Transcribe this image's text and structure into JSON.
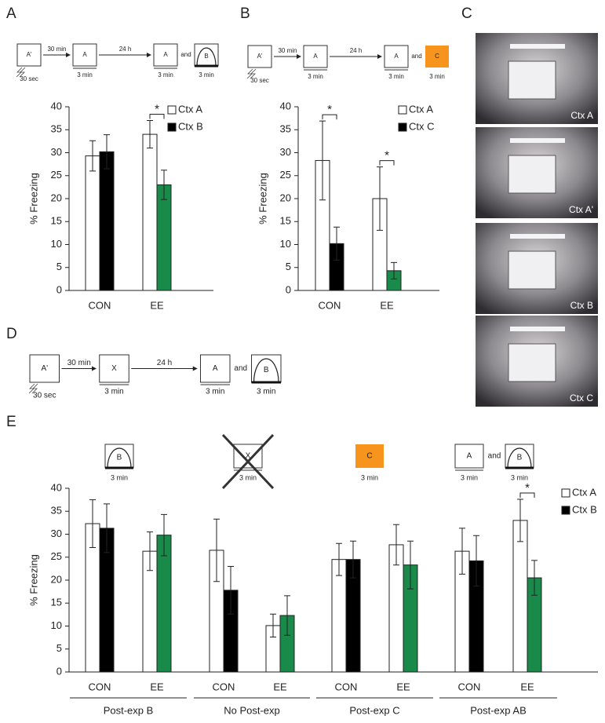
{
  "panel_labels": [
    "A",
    "B",
    "C",
    "D",
    "E"
  ],
  "diagrams": {
    "A": {
      "boxes": [
        "A'",
        "A",
        "A",
        "B"
      ],
      "shock": "30 sec",
      "arrows": [
        "30 min",
        "24 h"
      ],
      "joiner": "and",
      "durations": [
        "3 min",
        "3 min",
        "3 min"
      ]
    },
    "B": {
      "boxes": [
        "A'",
        "A",
        "A",
        "C"
      ],
      "shock": "30 sec",
      "arrows": [
        "30 min",
        "24 h"
      ],
      "joiner": "and",
      "durations": [
        "3 min",
        "3 min",
        "3 min"
      ]
    },
    "D": {
      "boxes": [
        "A'",
        "X",
        "A",
        "B"
      ],
      "shock": "30 sec",
      "arrows": [
        "30 min",
        "24 h"
      ],
      "joiner": "and",
      "durations": [
        "3 min",
        "3 min",
        "3 min"
      ]
    }
  },
  "conditions": [
    {
      "boxes": [
        "B"
      ],
      "durations": [
        "3 min"
      ]
    },
    {
      "boxes": [
        "X"
      ],
      "durations": [
        "3 min"
      ]
    },
    {
      "boxes": [
        "C"
      ],
      "durations": [
        "3 min"
      ]
    },
    {
      "boxes": [
        "A",
        "B"
      ],
      "joiner": "and",
      "durations": [
        "3 min",
        "3 min"
      ]
    }
  ],
  "photos": [
    "Ctx A",
    "Ctx A'",
    "Ctx B",
    "Ctx C"
  ],
  "chart_data": [
    {
      "type": "bar",
      "ylabel": "% Freezing",
      "categories": [
        "CON",
        "EE"
      ],
      "series": [
        {
          "name": "Ctx A",
          "color": "#ffffff",
          "values": [
            29.3,
            34
          ],
          "errors": [
            3.3,
            3
          ]
        },
        {
          "name": "Ctx B",
          "color": "#000000",
          "colors": [
            "#000000",
            "#1a8a4a"
          ],
          "values": [
            30.2,
            23
          ],
          "errors": [
            3.7,
            3.2
          ]
        }
      ],
      "significance": [
        null,
        "*"
      ],
      "ylim": [
        0,
        40
      ],
      "yticks": [
        0,
        5,
        10,
        15,
        20,
        25,
        30,
        35,
        40
      ]
    },
    {
      "type": "bar",
      "ylabel": "% Freezing",
      "categories": [
        "CON",
        "EE"
      ],
      "series": [
        {
          "name": "Ctx A",
          "color": "#ffffff",
          "values": [
            28.3,
            20
          ],
          "errors": [
            8.6,
            6.9
          ]
        },
        {
          "name": "Ctx C",
          "color": "#000000",
          "colors": [
            "#000000",
            "#1a8a4a"
          ],
          "values": [
            10.2,
            4.3
          ],
          "errors": [
            3.6,
            1.8
          ]
        }
      ],
      "significance": [
        "*",
        "*"
      ],
      "ylim": [
        0,
        40
      ],
      "yticks": [
        0,
        5,
        10,
        15,
        20,
        25,
        30,
        35,
        40
      ]
    },
    {
      "type": "bar",
      "ylabel": "% Freezing",
      "categories": [
        "CON",
        "EE",
        "CON",
        "EE",
        "CON",
        "EE",
        "CON",
        "EE"
      ],
      "groups": [
        "Post-exp B",
        "No Post-exp",
        "Post-exp C",
        "Post-exp AB"
      ],
      "series": [
        {
          "name": "Ctx A",
          "color": "#ffffff",
          "values": [
            32.3,
            26.3,
            26.5,
            10.1,
            24.5,
            27.7,
            26.3,
            33
          ],
          "errors": [
            5.2,
            4.2,
            6.8,
            2.5,
            3.5,
            4.4,
            5,
            4.6
          ]
        },
        {
          "name": "Ctx B",
          "color": "#000000",
          "colors": [
            "#000000",
            "#1a8a4a",
            "#000000",
            "#1a8a4a",
            "#000000",
            "#1a8a4a",
            "#000000",
            "#1a8a4a"
          ],
          "values": [
            31.3,
            29.8,
            17.8,
            12.3,
            24.5,
            23.3,
            24.2,
            20.5
          ],
          "errors": [
            5.3,
            4.5,
            5.2,
            4.3,
            4,
            5.2,
            5.5,
            3.8
          ]
        }
      ],
      "significance": [
        null,
        null,
        null,
        null,
        null,
        null,
        null,
        "*"
      ],
      "ylim": [
        0,
        40
      ],
      "yticks": [
        0,
        5,
        10,
        15,
        20,
        25,
        30,
        35,
        40
      ]
    }
  ]
}
